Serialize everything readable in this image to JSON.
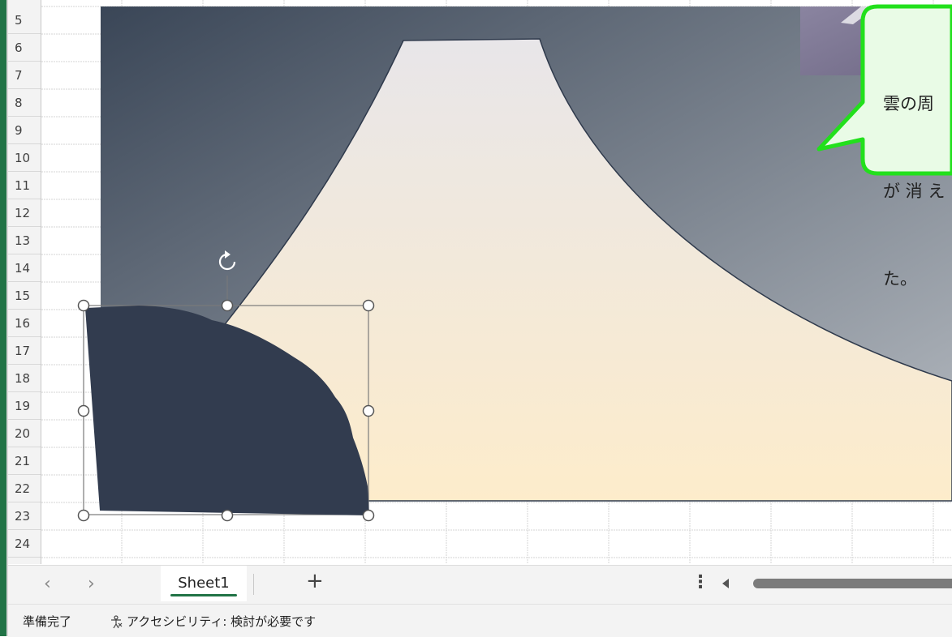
{
  "row_numbers": [
    "5",
    "6",
    "7",
    "8",
    "9",
    "10",
    "11",
    "12",
    "13",
    "14",
    "15",
    "16",
    "17",
    "18",
    "19",
    "20",
    "21",
    "22",
    "23",
    "24"
  ],
  "callout": {
    "lines": [
      "雲の周",
      "が 消 え",
      "た。"
    ]
  },
  "sheet_tabs": [
    {
      "label": "Sheet1",
      "active": true
    }
  ],
  "sheet_bar": {
    "prev_label": "‹",
    "next_label": "›",
    "add_label": "+",
    "more_label": "⋮"
  },
  "status": {
    "ready": "準備完了",
    "accessibility": "アクセシビリティ: 検討が必要です"
  },
  "colors": {
    "accent": "#217346",
    "callout_border": "#22e01c",
    "callout_fill": "#e9fbe6",
    "mountain_top": "#e8e6e9",
    "mountain_bottom": "#fdeccb",
    "sky_dark": "#3a4657",
    "cloud_shape": "#323c4f"
  },
  "icons": {
    "rotate_handle": "rotate-icon",
    "accessibility": "accessibility-icon"
  }
}
